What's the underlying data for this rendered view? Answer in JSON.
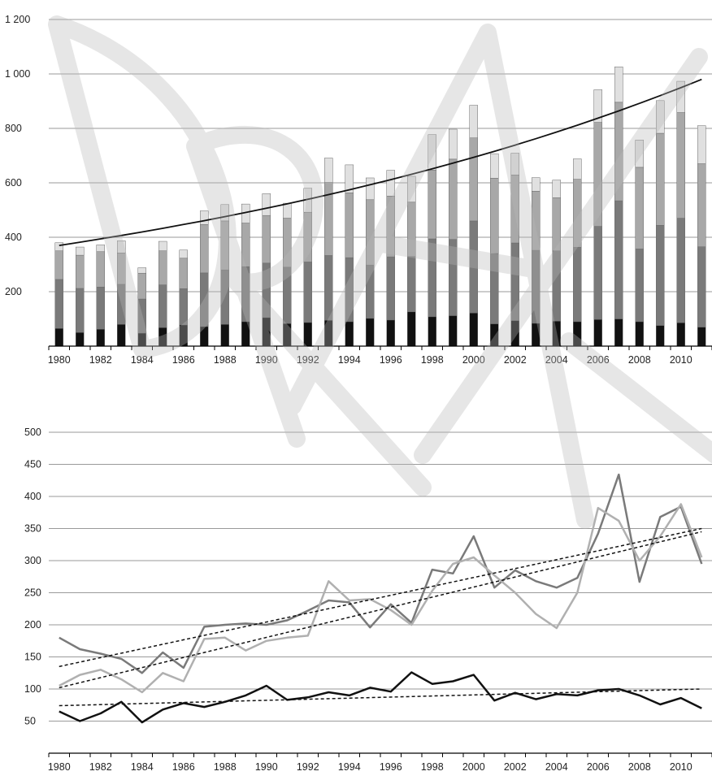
{
  "watermark": "DRAFT",
  "chart_data": [
    {
      "type": "bar",
      "stacked": true,
      "grid": true,
      "legend": "none",
      "ylim": [
        0,
        1200
      ],
      "y_ticks": [
        200,
        400,
        600,
        800,
        1000,
        1200
      ],
      "y_tick_labels": [
        "200",
        "400",
        "600",
        "800",
        "1 000",
        "1 200"
      ],
      "x": [
        1980,
        1981,
        1982,
        1983,
        1984,
        1985,
        1986,
        1987,
        1988,
        1989,
        1990,
        1991,
        1992,
        1993,
        1994,
        1995,
        1996,
        1997,
        1998,
        1999,
        2000,
        2001,
        2002,
        2003,
        2004,
        2005,
        2006,
        2007,
        2008,
        2009,
        2010,
        2011
      ],
      "x_tick_labels": [
        "1980",
        "1982",
        "1984",
        "1986",
        "1988",
        "1990",
        "1992",
        "1994",
        "1996",
        "1998",
        "2000",
        "2002",
        "2004",
        "2006",
        "2008",
        "2010"
      ],
      "colors": [
        "#111111",
        "#7a7a7a",
        "#a8a8a8",
        "#e0e0e0"
      ],
      "series": [
        {
          "values": [
            65,
            50,
            62,
            80,
            48,
            68,
            78,
            72,
            80,
            90,
            105,
            83,
            87,
            95,
            90,
            102,
            96,
            126,
            108,
            112,
            122,
            82,
            94,
            84,
            92,
            90,
            98,
            100,
            90,
            76,
            86,
            70
          ]
        },
        {
          "values": [
            180,
            162,
            155,
            147,
            125,
            157,
            133,
            197,
            200,
            202,
            200,
            207,
            222,
            238,
            235,
            196,
            232,
            203,
            286,
            280,
            338,
            258,
            285,
            268,
            258,
            273,
            342,
            434,
            267,
            368,
            384,
            295
          ]
        },
        {
          "values": [
            105,
            122,
            130,
            115,
            95,
            125,
            112,
            178,
            180,
            160,
            175,
            180,
            183,
            268,
            238,
            240,
            223,
            200,
            253,
            295,
            305,
            277,
            250,
            217,
            195,
            250,
            382,
            362,
            300,
            338,
            388,
            305
          ]
        },
        {
          "values": [
            30,
            30,
            25,
            45,
            20,
            35,
            30,
            50,
            60,
            70,
            80,
            55,
            88,
            90,
            103,
            80,
            95,
            95,
            130,
            110,
            120,
            90,
            80,
            50,
            65,
            75,
            120,
            130,
            100,
            120,
            115,
            140
          ]
        }
      ],
      "trend": {
        "type": "exponential",
        "start_value": 370,
        "end_value": 980
      }
    },
    {
      "type": "line",
      "grid": true,
      "legend": "none",
      "ylim": [
        0,
        500
      ],
      "y_ticks": [
        50,
        100,
        150,
        200,
        250,
        300,
        350,
        400,
        450,
        500
      ],
      "y_tick_labels": [
        "50",
        "100",
        "150",
        "200",
        "250",
        "300",
        "350",
        "400",
        "450",
        "500"
      ],
      "x": [
        1980,
        1981,
        1982,
        1983,
        1984,
        1985,
        1986,
        1987,
        1988,
        1989,
        1990,
        1991,
        1992,
        1993,
        1994,
        1995,
        1996,
        1997,
        1998,
        1999,
        2000,
        2001,
        2002,
        2003,
        2004,
        2005,
        2006,
        2007,
        2008,
        2009,
        2010,
        2011
      ],
      "x_tick_labels": [
        "1980",
        "1982",
        "1984",
        "1986",
        "1988",
        "1990",
        "1992",
        "1994",
        "1996",
        "1998",
        "2000",
        "2002",
        "2004",
        "2006",
        "2008",
        "2010"
      ],
      "series": [
        {
          "color": "#111111",
          "values": [
            65,
            50,
            62,
            80,
            48,
            68,
            78,
            72,
            80,
            90,
            105,
            83,
            87,
            95,
            90,
            102,
            96,
            126,
            108,
            112,
            122,
            82,
            94,
            84,
            92,
            90,
            98,
            100,
            90,
            76,
            86,
            70
          ]
        },
        {
          "color": "#7a7a7a",
          "values": [
            180,
            162,
            155,
            147,
            125,
            157,
            133,
            197,
            200,
            202,
            200,
            207,
            222,
            238,
            235,
            196,
            232,
            203,
            286,
            280,
            338,
            258,
            285,
            268,
            258,
            273,
            342,
            434,
            267,
            368,
            384,
            295
          ]
        },
        {
          "color": "#b0b0b0",
          "values": [
            105,
            122,
            130,
            115,
            95,
            125,
            112,
            178,
            180,
            160,
            175,
            180,
            183,
            268,
            238,
            240,
            223,
            200,
            253,
            295,
            305,
            277,
            250,
            217,
            195,
            250,
            382,
            362,
            300,
            338,
            388,
            305
          ]
        }
      ],
      "trendlines": [
        {
          "start": 74,
          "end": 100
        },
        {
          "start": 135,
          "end": 350
        },
        {
          "start": 102,
          "end": 345
        }
      ]
    }
  ]
}
